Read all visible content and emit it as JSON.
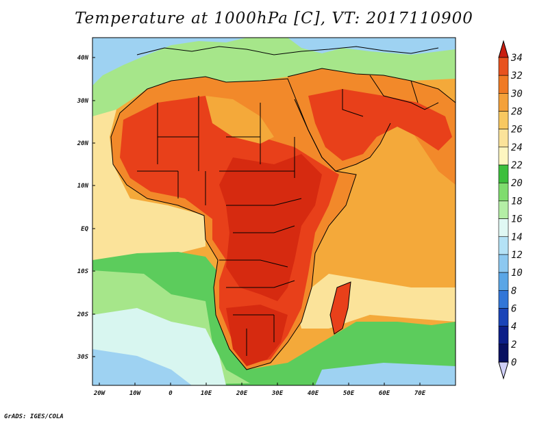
{
  "title": "Temperature at 1000hPa [C], VT: 2017110900",
  "credit": "GrADS: IGES/COLA",
  "map": {
    "lat_labels": [
      "40N",
      "30N",
      "20N",
      "10N",
      "EQ",
      "10S",
      "20S",
      "30S"
    ],
    "lon_labels": [
      "20W",
      "10W",
      "0",
      "10E",
      "20E",
      "30E",
      "40E",
      "50E",
      "60E",
      "70E"
    ],
    "colors": {
      "land_hot": "#e8401a",
      "land_very_hot": "#d62a10",
      "land_warm": "#f2892a",
      "ocean_warm": "#f4a93a",
      "ocean_mild": "#fbe39a",
      "cool_green": "#5ccc5c",
      "cool_lightgreen": "#a6e68a",
      "cold_lightblue": "#d8f6f0",
      "cold_blue": "#9ed2f2",
      "border": "#000000"
    }
  },
  "colorbar": {
    "labels": [
      "34",
      "32",
      "30",
      "28",
      "26",
      "24",
      "22",
      "20",
      "18",
      "16",
      "14",
      "12",
      "10",
      "8",
      "6",
      "4",
      "2",
      "0"
    ],
    "colors": [
      "#d42c14",
      "#e8521e",
      "#f07a24",
      "#f4a13a",
      "#f8c860",
      "#fbe39a",
      "#fdf6c0",
      "#3cbf3c",
      "#7fdc6e",
      "#b4eea6",
      "#e0f8f4",
      "#b4e2f6",
      "#8cc8f0",
      "#5aa6e6",
      "#3276d8",
      "#1a44b8",
      "#0c1e88",
      "#081060"
    ],
    "top_arrow_color": "#c81e10",
    "bottom_arrow_color": "#d0d0f8"
  }
}
